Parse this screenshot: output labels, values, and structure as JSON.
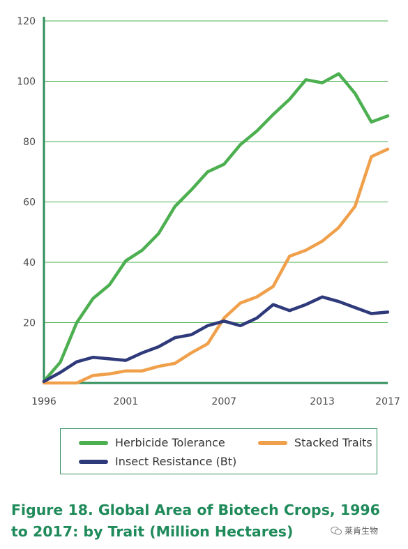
{
  "chart_data": {
    "type": "line",
    "x": [
      1996,
      1997,
      1998,
      1999,
      2000,
      2001,
      2002,
      2003,
      2004,
      2005,
      2006,
      2007,
      2008,
      2009,
      2010,
      2011,
      2012,
      2013,
      2014,
      2015,
      2016,
      2017
    ],
    "series": [
      {
        "name": "Herbicide Tolerance",
        "color": "#4caf50",
        "values": [
          0.6,
          6.9,
          20,
          28,
          32.5,
          40.5,
          44,
          49.5,
          58.5,
          64,
          70,
          72.5,
          79,
          83.5,
          89,
          94,
          100.5,
          99.5,
          102.5,
          96,
          86.5,
          88.5
        ]
      },
      {
        "name": "Stacked Traits",
        "color": "#f0a04b",
        "values": [
          0,
          0,
          0,
          2.5,
          3,
          4,
          4,
          5.5,
          6.5,
          10,
          13,
          21.5,
          26.5,
          28.5,
          32,
          42,
          44,
          47,
          51.5,
          58.5,
          75,
          77.5
        ]
      },
      {
        "name": "Insect Resistance (Bt)",
        "color": "#2f3a7a",
        "values": [
          0.5,
          3.5,
          7,
          8.5,
          8,
          7.5,
          10,
          12,
          15,
          16,
          19,
          20.5,
          19,
          21.5,
          26,
          24,
          26,
          28.5,
          27,
          25,
          23,
          23.5
        ]
      }
    ],
    "xticks": [
      "1996",
      "2001",
      "2007",
      "2013",
      "2017"
    ],
    "yticks": [
      "20",
      "40",
      "60",
      "80",
      "100",
      "120"
    ],
    "xlim": [
      1996,
      2017
    ],
    "ylim": [
      0,
      120
    ],
    "grid": "horizontal",
    "legend_position": "bottom",
    "title": "Figure 18. Global Area of Biotech Crops, 1996 to 2017: by Trait (Million Hectares)",
    "title_lines": [
      "Figure 18. Global Area of Biotech Crops, 1996",
      "to 2017: by Trait (Million Hectares)"
    ],
    "axis_color": "#2f8f5b",
    "grid_color": "#4caf50"
  },
  "watermark": {
    "text": "莱肯生物"
  }
}
